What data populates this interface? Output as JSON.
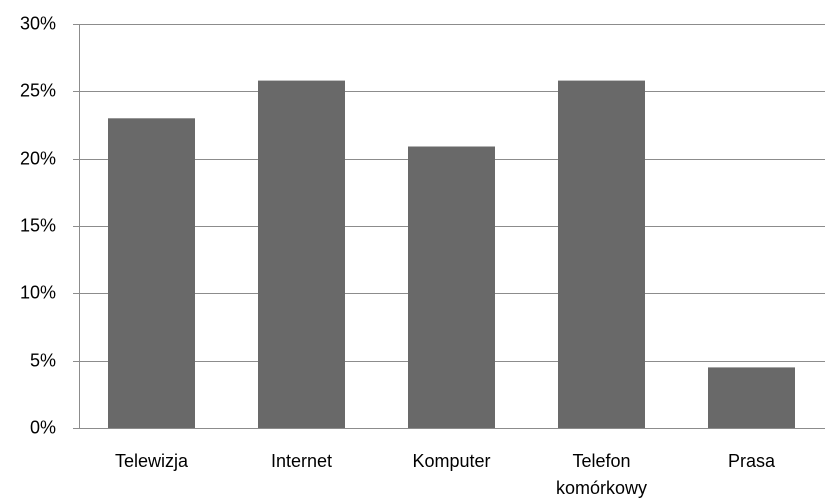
{
  "chart_data": {
    "type": "bar",
    "categories": [
      [
        "Telewizja"
      ],
      [
        "Internet"
      ],
      [
        "Komputer"
      ],
      [
        "Telefon",
        "komórkowy"
      ],
      [
        "Prasa"
      ]
    ],
    "series": [
      {
        "values": [
          23,
          25.8,
          20.9,
          25.8,
          4.5
        ],
        "color": "#696969"
      }
    ],
    "ylim": [
      0,
      30
    ],
    "yticks": [
      0,
      5,
      10,
      15,
      20,
      25,
      30
    ],
    "ytick_labels": [
      "0%",
      "5%",
      "10%",
      "15%",
      "20%",
      "25%",
      "30%"
    ],
    "grid": true,
    "legend": "none"
  }
}
